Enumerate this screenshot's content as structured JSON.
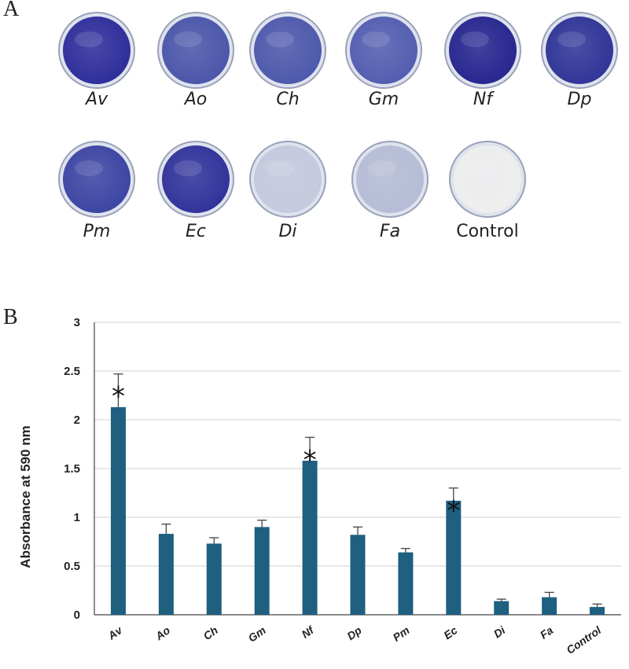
{
  "panel_a": {
    "letter": "A",
    "dishes": [
      {
        "label": "Av",
        "italic": true,
        "color": "#2d2d9a"
      },
      {
        "label": "Ao",
        "italic": true,
        "color": "#4a55aa"
      },
      {
        "label": "Ch",
        "italic": true,
        "color": "#4c58ab"
      },
      {
        "label": "Gm",
        "italic": true,
        "color": "#525db0"
      },
      {
        "label": "Nf",
        "italic": true,
        "color": "#25258f"
      },
      {
        "label": "Dp",
        "italic": true,
        "color": "#2f3497"
      },
      {
        "label": "Pm",
        "italic": true,
        "color": "#3c44a3"
      },
      {
        "label": "Ec",
        "italic": true,
        "color": "#30329a"
      },
      {
        "label": "Di",
        "italic": true,
        "color": "#c6c9de"
      },
      {
        "label": "Fa",
        "italic": true,
        "color": "#b6bcd6"
      },
      {
        "label": "Control",
        "italic": false,
        "color": "#eeeeee"
      }
    ]
  },
  "panel_b": {
    "letter": "B"
  },
  "chart_data": {
    "type": "bar",
    "title": "",
    "xlabel": "",
    "ylabel": "Absorbance at 590 nm",
    "ylim": [
      0,
      3
    ],
    "yticks": [
      "0",
      "0.5",
      "1",
      "1.5",
      "2",
      "2.5",
      "3"
    ],
    "grid": true,
    "bar_color": "#1f5f80",
    "categories": [
      "Av",
      "Ao",
      "Ch",
      "Gm",
      "Nf",
      "Dp",
      "Pm",
      "Ec",
      "Di",
      "Fa",
      "Control"
    ],
    "values": [
      2.13,
      0.83,
      0.73,
      0.9,
      1.58,
      0.82,
      0.64,
      1.17,
      0.14,
      0.18,
      0.08
    ],
    "errors": [
      0.34,
      0.1,
      0.06,
      0.07,
      0.24,
      0.08,
      0.04,
      0.13,
      0.02,
      0.05,
      0.03
    ],
    "significance": [
      "*",
      "",
      "",
      "",
      "*",
      "",
      "",
      "*",
      "",
      "",
      ""
    ]
  }
}
